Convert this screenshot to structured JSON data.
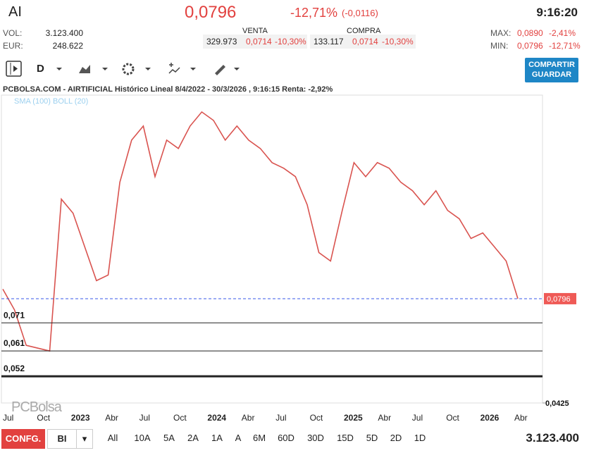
{
  "header": {
    "symbol": "AI",
    "price": "0,0796",
    "change_pct": "-12,71%",
    "change_abs": "(-0,0116)",
    "time": "9:16:20",
    "vol_label": "VOL:",
    "vol": "3.123.400",
    "eur_label": "EUR:",
    "eur": "248.622",
    "sell": {
      "title": "VENTA",
      "qty": "329.973",
      "price": "0,0714",
      "pct": "-10,30%"
    },
    "buy": {
      "title": "COMPRA",
      "qty": "133.117",
      "price": "0,0714",
      "pct": "-10,30%"
    },
    "max_label": "MAX:",
    "max": "0,0890",
    "max_pct": "-2,41%",
    "min_label": "MIN:",
    "min": "0,0796",
    "min_pct": "-12,71%"
  },
  "toolbar": {
    "interval": "D",
    "button": "COMPARTIR GUARDAR"
  },
  "chart_data": {
    "type": "line",
    "title": "PCBOLSA.COM - AIRTIFICIAL Histórico Lineal 8/4/2022 - 30/3/2026 , 9:16:15 Renta: -2,92%",
    "legend": [
      "SMA (100)",
      "BOLL (20)"
    ],
    "watermark": "PCBolsa",
    "color": "#d9534f",
    "values": [
      0.083,
      0.0756,
      0.063,
      0.062,
      0.061,
      0.115,
      0.11,
      0.098,
      0.086,
      0.088,
      0.121,
      0.136,
      0.141,
      0.123,
      0.136,
      0.133,
      0.141,
      0.146,
      0.143,
      0.136,
      0.141,
      0.136,
      0.133,
      0.128,
      0.126,
      0.123,
      0.113,
      0.096,
      0.093,
      0.111,
      0.128,
      0.123,
      0.128,
      0.126,
      0.121,
      0.118,
      0.113,
      0.118,
      0.111,
      0.108,
      0.101,
      0.103,
      0.098,
      0.093,
      0.0796
    ],
    "ylim": [
      0.0425,
      0.152
    ],
    "levels": [
      {
        "value": 0.071,
        "label": "0,071"
      },
      {
        "value": 0.061,
        "label": "0,061"
      },
      {
        "value": 0.052,
        "label": "0,052"
      }
    ],
    "last": {
      "value": 0.0796,
      "label": "0,0796"
    },
    "bottom": {
      "value": 0.0425,
      "label": "0,0425"
    },
    "xtick_labels": [
      "Jul",
      "Oct",
      "2023",
      "Abr",
      "Jul",
      "Oct",
      "2024",
      "Abr",
      "Jul",
      "Oct",
      "2025",
      "Abr",
      "Jul",
      "Oct",
      "2026",
      "Abr"
    ]
  },
  "footer": {
    "config": "CONFG.",
    "mode": "BI",
    "periods": [
      "All",
      "10A",
      "5A",
      "2A",
      "1A",
      "A",
      "6M",
      "60D",
      "30D",
      "15D",
      "5D",
      "2D",
      "1D"
    ],
    "volume": "3.123.400"
  }
}
